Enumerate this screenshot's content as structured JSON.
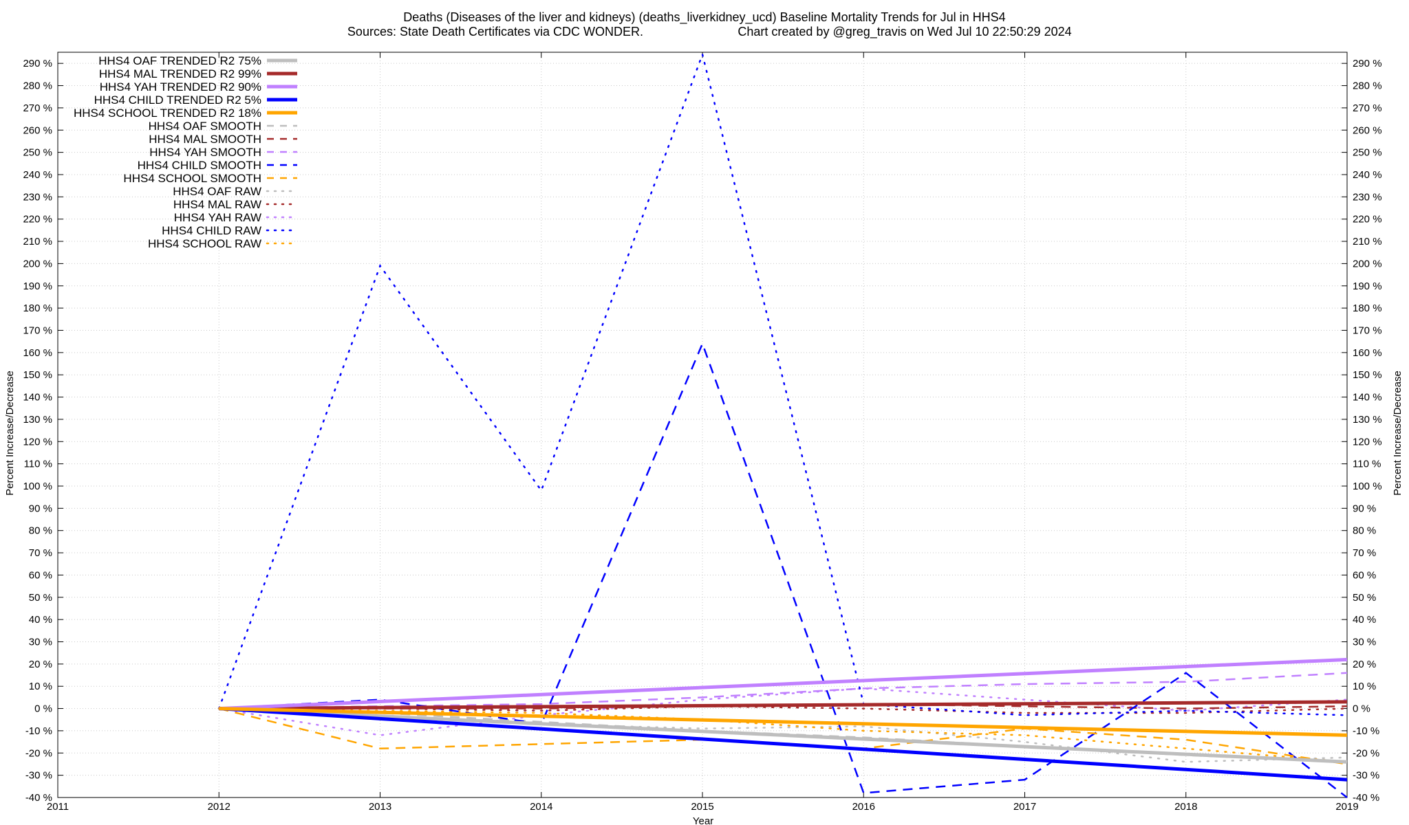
{
  "chart_data": {
    "type": "line",
    "title": "Deaths (Diseases of the liver and kidneys) (deaths_liverkidney_ucd)  Baseline Mortality Trends for Jul in HHS4",
    "subtitle_left": "Sources: State Death Certificates via CDC WONDER.",
    "subtitle_right": "Chart created by @greg_travis on Wed Jul 10 22:50:29 2024",
    "xlabel": "Year",
    "ylabel": "Percent Increase/Decrease",
    "y2label": "Percent Increase/Decrease",
    "xlim": [
      2011,
      2019
    ],
    "ylim": [
      -40,
      295
    ],
    "x_ticks": [
      2011,
      2012,
      2013,
      2014,
      2015,
      2016,
      2017,
      2018,
      2019
    ],
    "x_tick_labels": [
      "2011",
      "2012",
      "2013",
      "2014",
      "2015",
      "2016",
      "2017",
      "2018",
      "2019"
    ],
    "y_ticks": [
      -40,
      -30,
      -20,
      -10,
      0,
      10,
      20,
      30,
      40,
      50,
      60,
      70,
      80,
      90,
      100,
      110,
      120,
      130,
      140,
      150,
      160,
      170,
      180,
      190,
      200,
      210,
      220,
      230,
      240,
      250,
      260,
      270,
      280,
      290
    ],
    "y_tick_labels": [
      "-40 %",
      "-30 %",
      "-20 %",
      "-10 %",
      "0 %",
      "10 %",
      "20 %",
      "30 %",
      "40 %",
      "50 %",
      "60 %",
      "70 %",
      "80 %",
      "90 %",
      "100 %",
      "110 %",
      "120 %",
      "130 %",
      "140 %",
      "150 %",
      "160 %",
      "170 %",
      "180 %",
      "190 %",
      "200 %",
      "210 %",
      "220 %",
      "230 %",
      "240 %",
      "250 %",
      "260 %",
      "270 %",
      "280 %",
      "290 %"
    ],
    "grid": true,
    "legend_position": "top-left",
    "series": [
      {
        "name": "HHS4 OAF TRENDED R2  75%",
        "color": "#bebebe",
        "style": "solid",
        "x": [
          2012,
          2019
        ],
        "values": [
          0,
          -24
        ]
      },
      {
        "name": "HHS4 MAL TRENDED R2  99%",
        "color": "#a52a2a",
        "style": "solid",
        "x": [
          2012,
          2019
        ],
        "values": [
          0,
          3
        ]
      },
      {
        "name": "HHS4 YAH TRENDED R2  90%",
        "color": "#c080ff",
        "style": "solid",
        "x": [
          2012,
          2019
        ],
        "values": [
          0,
          22
        ]
      },
      {
        "name": "HHS4 CHILD TRENDED R2   5%",
        "color": "#0000ff",
        "style": "solid",
        "x": [
          2012,
          2019
        ],
        "values": [
          0,
          -32
        ]
      },
      {
        "name": "HHS4 SCHOOL TRENDED R2  18%",
        "color": "#ffa500",
        "style": "solid",
        "x": [
          2012,
          2019
        ],
        "values": [
          0,
          -12
        ]
      },
      {
        "name": "HHS4 OAF SMOOTH",
        "color": "#bebebe",
        "style": "dashed",
        "x": [
          2012,
          2013,
          2014,
          2015,
          2016,
          2017,
          2018,
          2019
        ],
        "values": [
          0,
          -2,
          -6,
          -10,
          -13,
          -17,
          -21,
          -24
        ]
      },
      {
        "name": "HHS4 MAL SMOOTH",
        "color": "#a52a2a",
        "style": "dashed",
        "x": [
          2012,
          2013,
          2014,
          2015,
          2016,
          2017,
          2018,
          2019
        ],
        "values": [
          0,
          0,
          0,
          1,
          2,
          1,
          0,
          1
        ]
      },
      {
        "name": "HHS4 YAH SMOOTH",
        "color": "#c080ff",
        "style": "dashed",
        "x": [
          2012,
          2013,
          2014,
          2015,
          2016,
          2017,
          2018,
          2019
        ],
        "values": [
          0,
          1,
          2,
          5,
          9,
          11,
          12,
          16
        ]
      },
      {
        "name": "HHS4 CHILD SMOOTH",
        "color": "#0000ff",
        "style": "dashed",
        "x": [
          2012,
          2013,
          2014,
          2015,
          2016,
          2017,
          2018,
          2019
        ],
        "values": [
          0,
          4,
          -7,
          164,
          -38,
          -32,
          16,
          -40
        ]
      },
      {
        "name": "HHS4 SCHOOL SMOOTH",
        "color": "#ffa500",
        "style": "dashed",
        "x": [
          2012,
          2013,
          2014,
          2015,
          2016,
          2017,
          2018,
          2019
        ],
        "values": [
          0,
          -18,
          -16,
          -14,
          -18,
          -9,
          -14,
          -25
        ]
      },
      {
        "name": "HHS4 OAF RAW",
        "color": "#bebebe",
        "style": "dotted",
        "x": [
          2012,
          2013,
          2014,
          2015,
          2016,
          2017,
          2018,
          2019
        ],
        "values": [
          0,
          -3,
          -7,
          -9,
          -8,
          -15,
          -24,
          -22
        ]
      },
      {
        "name": "HHS4 MAL RAW",
        "color": "#a52a2a",
        "style": "dotted",
        "x": [
          2012,
          2013,
          2014,
          2015,
          2016,
          2017,
          2018,
          2019
        ],
        "values": [
          0,
          0,
          -1,
          1,
          0,
          -2,
          -2,
          0
        ]
      },
      {
        "name": "HHS4 YAH RAW",
        "color": "#c080ff",
        "style": "dotted",
        "x": [
          2012,
          2013,
          2014,
          2015,
          2016,
          2017,
          2018,
          2019
        ],
        "values": [
          0,
          -12,
          -3,
          4,
          9,
          4,
          -1,
          4
        ]
      },
      {
        "name": "HHS4 CHILD RAW",
        "color": "#0000ff",
        "style": "dotted",
        "x": [
          2012,
          2013,
          2014,
          2015,
          2016,
          2017,
          2018,
          2019
        ],
        "values": [
          0,
          199,
          98,
          294,
          2,
          -3,
          -1,
          -3
        ]
      },
      {
        "name": "HHS4 SCHOOL RAW",
        "color": "#ffa500",
        "style": "dotted",
        "x": [
          2012,
          2013,
          2014,
          2015,
          2016,
          2017,
          2018,
          2019
        ],
        "values": [
          0,
          -1,
          -2,
          -5,
          -10,
          -12,
          -18,
          -24
        ]
      }
    ]
  }
}
